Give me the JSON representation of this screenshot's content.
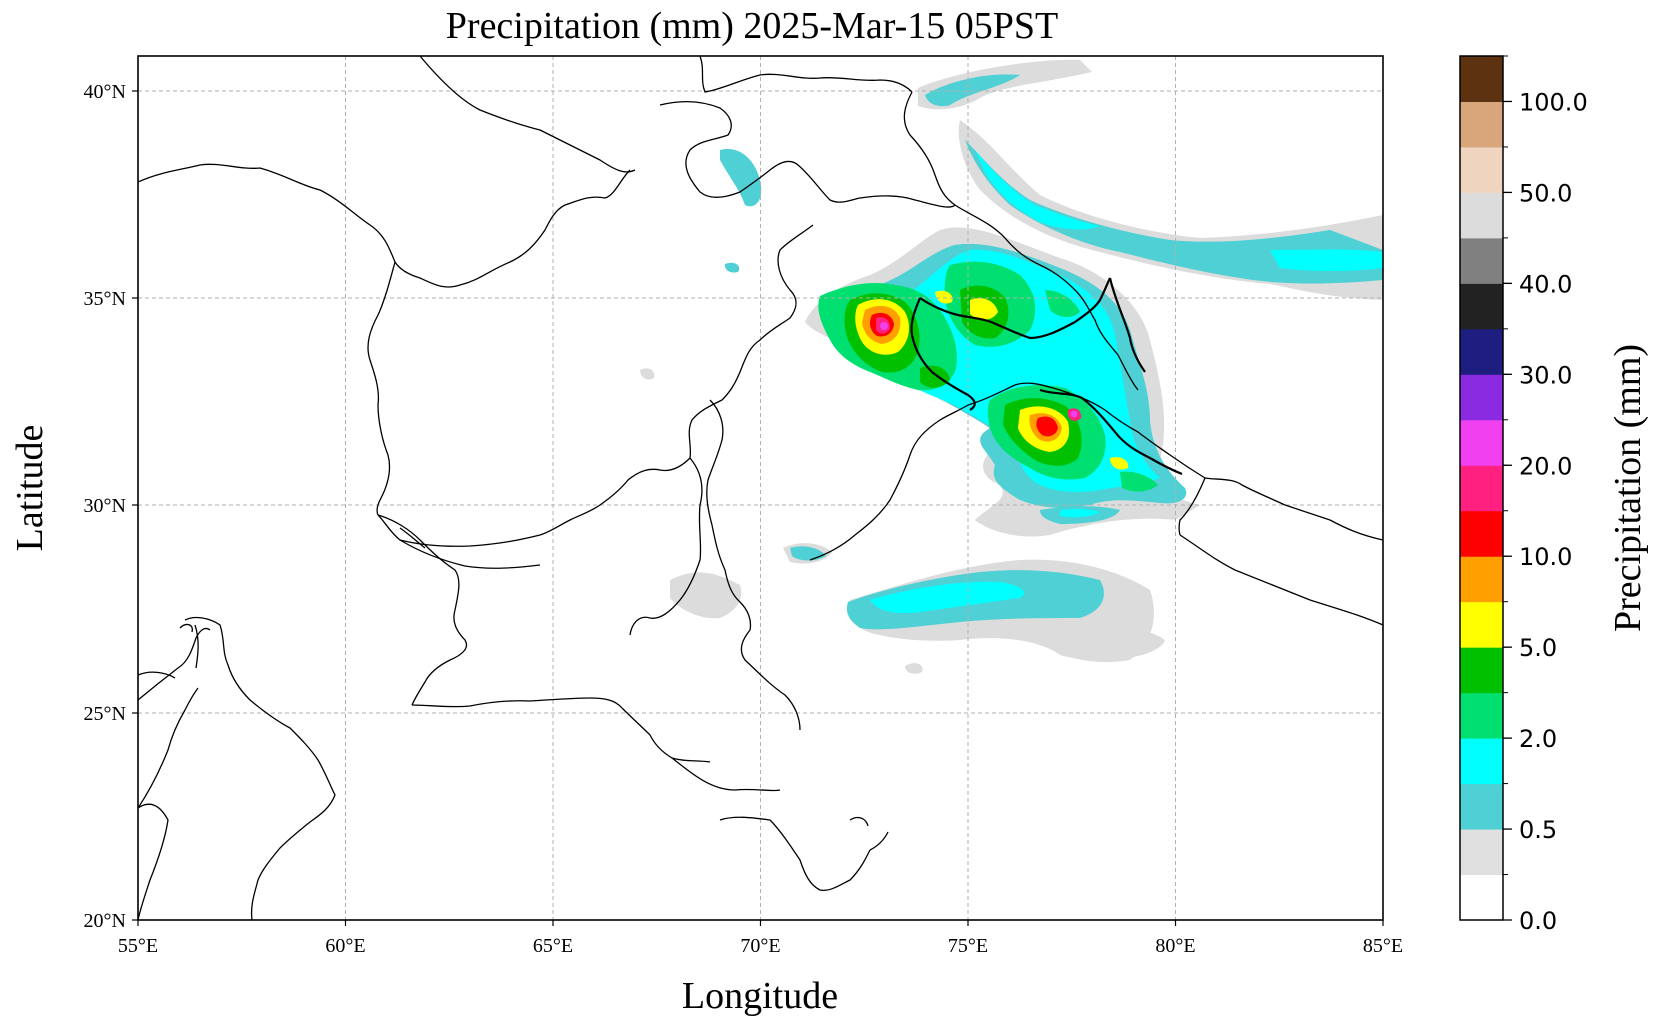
{
  "title": "Precipitation (mm)  2025-Mar-15 05PST",
  "xlabel": "Longitude",
  "ylabel": "Latitude",
  "colorbar_label": "Precipitation (mm)",
  "x_ticks": [
    "55°E",
    "60°E",
    "65°E",
    "70°E",
    "75°E",
    "80°E",
    "85°E"
  ],
  "y_ticks": [
    "20°N",
    "25°N",
    "30°N",
    "35°N",
    "40°N"
  ],
  "colorbar_ticks": [
    "0.0",
    "0.5",
    "2.0",
    "5.0",
    "10.0",
    "20.0",
    "30.0",
    "40.0",
    "50.0",
    "100.0"
  ],
  "colorbar_colors": [
    "#ffffff",
    "#e0e0e0",
    "#4fd0d4",
    "#00ffff",
    "#00e070",
    "#00c000",
    "#ffff00",
    "#ffa000",
    "#ff0000",
    "#ff2080",
    "#f040f0",
    "#8a2be2",
    "#1e1e80",
    "#222222",
    "#808080",
    "#dcdcdc",
    "#efd5c0",
    "#d8a67a",
    "#5c3210"
  ],
  "chart_data": {
    "type": "heatmap",
    "title": "Precipitation (mm)  2025-Mar-15 05PST",
    "xlabel": "Longitude",
    "ylabel": "Latitude",
    "xlim": [
      55,
      85
    ],
    "ylim": [
      20,
      41
    ],
    "grid": true,
    "colorbar_levels": [
      0.0,
      0.5,
      2.0,
      5.0,
      10.0,
      20.0,
      30.0,
      40.0,
      50.0,
      100.0
    ]
  }
}
